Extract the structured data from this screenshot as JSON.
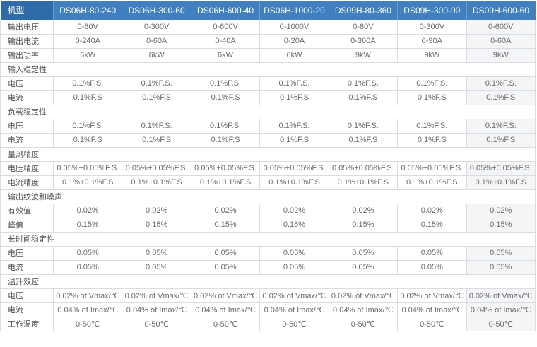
{
  "colors": {
    "header_bg": "#4080c1",
    "header_first_bg": "#2d6ca9",
    "header_separator": "#6f9fce",
    "header_text": "#ffffff",
    "border": "#d9dce0",
    "label_text": "#4e4e4e",
    "value_text": "#6b6b6b",
    "last_col_bg": "#f3f5f7"
  },
  "table": {
    "header": {
      "model_label": "机型",
      "models": [
        "DS06H-80-240",
        "DS06H-300-60",
        "DS06H-600-40",
        "DS06H-1000-20",
        "DS09H-80-360",
        "DS09H-300-90",
        "DS09H-600-60"
      ]
    },
    "rows": [
      {
        "kind": "data",
        "label": "输出电压",
        "values": [
          "0-80V",
          "0-300V",
          "0-600V",
          "0-1000V",
          "0-80V",
          "0-300V",
          "0-600V"
        ]
      },
      {
        "kind": "data",
        "label": "输出电流",
        "values": [
          "0-240A",
          "0-60A",
          "0-40A",
          "0-20A",
          "0-360A",
          "0-90A",
          "0-60A"
        ]
      },
      {
        "kind": "data",
        "label": "输出功率",
        "values": [
          "6kW",
          "6kW",
          "6kW",
          "6kW",
          "9kW",
          "9kW",
          "9kW"
        ]
      },
      {
        "kind": "section",
        "label": "输入稳定性"
      },
      {
        "kind": "data",
        "label": "电压",
        "values": [
          "0.1%F.S.",
          "0.1%F.S.",
          "0.1%F.S.",
          "0.1%F.S.",
          "0.1%F.S.",
          "0.1%F.S.",
          "0.1%F.S."
        ]
      },
      {
        "kind": "data",
        "label": "电流",
        "values": [
          "0.1%F.S",
          "0.1%F.S",
          "0.1%F.S",
          "0.1%F.S",
          "0.1%F.S",
          "0.1%F.S",
          "0.1%F.S"
        ]
      },
      {
        "kind": "section",
        "label": "负载稳定性"
      },
      {
        "kind": "data",
        "label": "电压",
        "values": [
          "0.1%F.S.",
          "0.1%F.S.",
          "0.1%F.S.",
          "0.1%F.S.",
          "0.1%F.S.",
          "0.1%F.S.",
          "0.1%F.S."
        ]
      },
      {
        "kind": "data",
        "label": "电流",
        "values": [
          "0.1%F.S",
          "0.1%F.S",
          "0.1%F.S",
          "0.1%F.S",
          "0.1%F.S",
          "0.1%F.S",
          "0.1%F.S"
        ]
      },
      {
        "kind": "section",
        "label": "量测精度"
      },
      {
        "kind": "data",
        "label": "电压精度",
        "values": [
          "0.05%+0.05%F.S.",
          "0.05%+0.05%F.S.",
          "0.05%+0.05%F.S.",
          "0.05%+0.05%F.S.",
          "0.05%+0.05%F.S.",
          "0.05%+0.05%F.S.",
          "0.05%+0.05%F.S."
        ]
      },
      {
        "kind": "data",
        "label": "电流精度",
        "values": [
          "0.1%+0.1%F.S",
          "0.1%+0.1%F.S",
          "0.1%+0.1%F.S",
          "0.1%+0.1%F.S",
          "0.1%+0.1%F.S",
          "0.1%+0.1%F.S",
          "0.1%+0.1%F.S"
        ]
      },
      {
        "kind": "section",
        "label": "输出纹波和噪声"
      },
      {
        "kind": "data",
        "label": "有效值",
        "values": [
          "0.02%",
          "0.02%",
          "0.02%",
          "0.02%",
          "0.02%",
          "0.02%",
          "0.02%"
        ]
      },
      {
        "kind": "data",
        "label": "峰值",
        "values": [
          "0.15%",
          "0.15%",
          "0.15%",
          "0.15%",
          "0.15%",
          "0.15%",
          "0.15%"
        ]
      },
      {
        "kind": "section",
        "label": "长时间稳定性"
      },
      {
        "kind": "data",
        "label": "电压",
        "values": [
          "0.05%",
          "0.05%",
          "0.05%",
          "0.05%",
          "0.05%",
          "0.05%",
          "0.05%"
        ]
      },
      {
        "kind": "data",
        "label": "电流",
        "values": [
          "0.05%",
          "0.05%",
          "0.05%",
          "0.05%",
          "0.05%",
          "0.05%",
          "0.05%"
        ]
      },
      {
        "kind": "section",
        "label": "温升效应"
      },
      {
        "kind": "data",
        "label": "电压",
        "values": [
          "0.02% of Vmax/℃",
          "0.02% of Vmax/℃",
          "0.02% of Vmax/℃",
          "0.02% of Vmax/℃",
          "0.02% of Vmax/℃",
          "0.02% of Vmax/℃",
          "0.02% of Vmax/℃"
        ]
      },
      {
        "kind": "data",
        "label": "电流",
        "values": [
          "0.04% of Imax/℃",
          "0.04% of Imax/℃",
          "0.04% of Imax/℃",
          "0.04% of Imax/℃",
          "0.04% of Imax/℃",
          "0.04% of Imax/℃",
          "0.04% of Imax/℃"
        ]
      },
      {
        "kind": "data",
        "label": "工作温度",
        "values": [
          "0-50℃",
          "0-50℃",
          "0-50℃",
          "0-50℃",
          "0-50℃",
          "0-50℃",
          "0-50℃"
        ]
      }
    ]
  }
}
